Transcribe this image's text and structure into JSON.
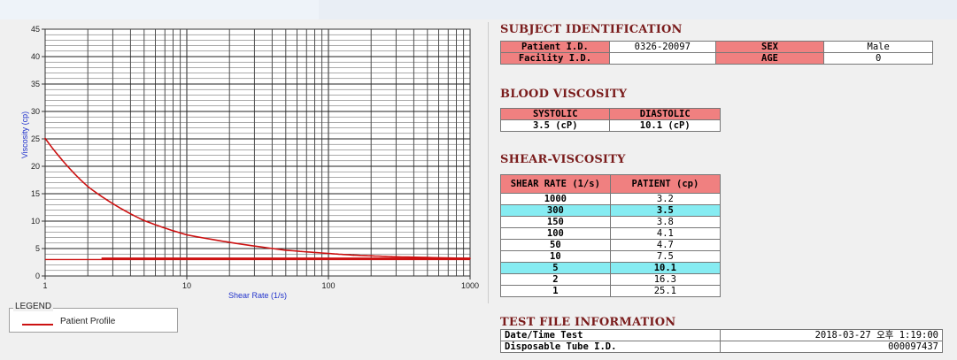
{
  "subject": {
    "title": "SUBJECT IDENTIFICATION",
    "patient_id_label": "Patient I.D.",
    "patient_id": "0326-20097",
    "sex_label": "SEX",
    "sex": "Male",
    "facility_id_label": "Facility I.D.",
    "facility_id": "",
    "age_label": "AGE",
    "age": "0"
  },
  "blood": {
    "title": "BLOOD VISCOSITY",
    "systolic_label": "SYSTOLIC",
    "diastolic_label": "DIASTOLIC",
    "systolic": "3.5 (cP)",
    "diastolic": "10.1 (cP)"
  },
  "shear": {
    "title": "SHEAR-VISCOSITY",
    "col_rate": "SHEAR RATE (1/s)",
    "col_patient": "PATIENT (cp)",
    "rows": [
      {
        "rate": "1000",
        "value": "3.2",
        "highlight": false
      },
      {
        "rate": "300",
        "value": "3.5",
        "highlight": true
      },
      {
        "rate": "150",
        "value": "3.8",
        "highlight": false
      },
      {
        "rate": "100",
        "value": "4.1",
        "highlight": false
      },
      {
        "rate": "50",
        "value": "4.7",
        "highlight": false
      },
      {
        "rate": "10",
        "value": "7.5",
        "highlight": false
      },
      {
        "rate": "5",
        "value": "10.1",
        "highlight": true
      },
      {
        "rate": "2",
        "value": "16.3",
        "highlight": false
      },
      {
        "rate": "1",
        "value": "25.1",
        "highlight": false
      }
    ]
  },
  "testfile": {
    "title": "TEST FILE INFORMATION",
    "datetime_label": "Date/Time Test",
    "datetime": "2018-03-27  오후 1:19:00",
    "tube_label": "Disposable Tube I.D.",
    "tube": "000097437"
  },
  "legend": {
    "title": "LEGEND",
    "items": [
      "Patient Profile"
    ]
  },
  "colors": {
    "curve": "#cc1111",
    "header": "#f08080",
    "highlight": "#86ecf2",
    "title": "#7a1c1c"
  },
  "chart_data": {
    "type": "line",
    "xscale": "log",
    "xlim": [
      1,
      1000
    ],
    "ylim": [
      0,
      45
    ],
    "xticks": [
      "1",
      "10",
      "100",
      "1000"
    ],
    "yticks": [
      "0",
      "5",
      "10",
      "15",
      "20",
      "25",
      "30",
      "35",
      "40",
      "45"
    ],
    "xlabel": "Shear Rate (1/s)",
    "ylabel": "Viscosity (cp)",
    "grid": true,
    "series": [
      {
        "name": "Patient Profile",
        "x": [
          1,
          2,
          5,
          10,
          50,
          100,
          150,
          300,
          1000
        ],
        "y": [
          25.1,
          16.3,
          10.1,
          7.5,
          4.7,
          4.1,
          3.8,
          3.5,
          3.2
        ]
      },
      {
        "x": [
          2.5,
          1000
        ],
        "y": [
          3.2,
          3.2
        ]
      },
      {
        "x": [
          1,
          1000
        ],
        "y": [
          3.0,
          3.0
        ]
      }
    ]
  }
}
